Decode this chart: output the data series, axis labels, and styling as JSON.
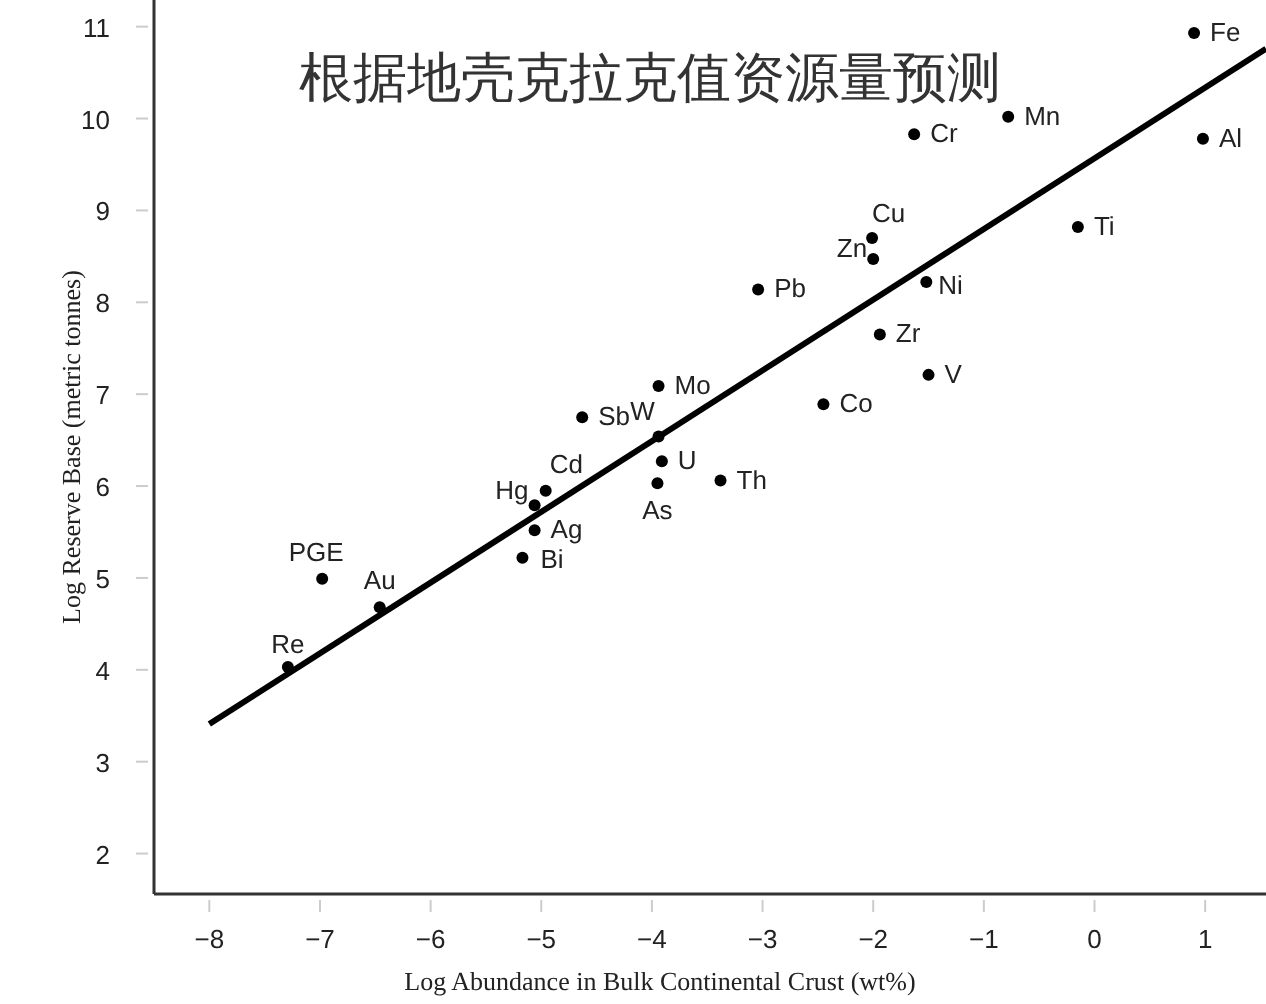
{
  "chart_data": {
    "type": "scatter",
    "title": "根据地壳克拉克值资源量预测",
    "xlabel": "Log Abundance in Bulk Continental Crust (wt%)",
    "ylabel": "Log Reserve Base (metric tonnes)",
    "xlim": [
      -8.5,
      1.55
    ],
    "ylim": [
      1.56,
      11.29
    ],
    "xticks": [
      -8,
      -7,
      -6,
      -5,
      -4,
      -3,
      -2,
      -1,
      0,
      1
    ],
    "yticks": [
      2,
      3,
      4,
      5,
      6,
      7,
      8,
      9,
      10,
      11
    ],
    "grid": false,
    "marker": "circle",
    "series": [
      {
        "name": "Fe",
        "color": "#000000",
        "x": [
          0.9
        ],
        "values": [
          10.93
        ]
      },
      {
        "name": "Mn",
        "color": "#000000",
        "x": [
          -0.78
        ],
        "values": [
          10.02
        ]
      },
      {
        "name": "Cr",
        "color": "#000000",
        "x": [
          -1.63
        ],
        "values": [
          9.83
        ]
      },
      {
        "name": "Al",
        "color": "#000000",
        "x": [
          0.98
        ],
        "values": [
          9.78
        ]
      },
      {
        "name": "Ti",
        "color": "#000000",
        "x": [
          -0.15
        ],
        "values": [
          8.82
        ]
      },
      {
        "name": "Cu",
        "color": "#000000",
        "x": [
          -2.01
        ],
        "values": [
          8.7
        ]
      },
      {
        "name": "Zn",
        "color": "#000000",
        "x": [
          -2.0
        ],
        "values": [
          8.47
        ]
      },
      {
        "name": "Ni",
        "color": "#000000",
        "x": [
          -1.52
        ],
        "values": [
          8.22
        ]
      },
      {
        "name": "Pb",
        "color": "#000000",
        "x": [
          -3.04
        ],
        "values": [
          8.14
        ]
      },
      {
        "name": "Zr",
        "color": "#000000",
        "x": [
          -1.94
        ],
        "values": [
          7.65
        ]
      },
      {
        "name": "V",
        "color": "#000000",
        "x": [
          -1.5
        ],
        "values": [
          7.21
        ]
      },
      {
        "name": "Mo",
        "color": "#000000",
        "x": [
          -3.94
        ],
        "values": [
          7.09
        ]
      },
      {
        "name": "Co",
        "color": "#000000",
        "x": [
          -2.45
        ],
        "values": [
          6.89
        ]
      },
      {
        "name": "Sb",
        "color": "#000000",
        "x": [
          -4.63
        ],
        "values": [
          6.75
        ]
      },
      {
        "name": "W",
        "color": "#000000",
        "x": [
          -3.94
        ],
        "values": [
          6.54
        ]
      },
      {
        "name": "U",
        "color": "#000000",
        "x": [
          -3.91
        ],
        "values": [
          6.27
        ]
      },
      {
        "name": "Th",
        "color": "#000000",
        "x": [
          -3.38
        ],
        "values": [
          6.06
        ]
      },
      {
        "name": "As",
        "color": "#000000",
        "x": [
          -3.95
        ],
        "values": [
          6.03
        ]
      },
      {
        "name": "Cd",
        "color": "#000000",
        "x": [
          -4.96
        ],
        "values": [
          5.95
        ]
      },
      {
        "name": "Hg",
        "color": "#000000",
        "x": [
          -5.06
        ],
        "values": [
          5.79
        ]
      },
      {
        "name": "Ag",
        "color": "#000000",
        "x": [
          -5.06
        ],
        "values": [
          5.52
        ]
      },
      {
        "name": "Bi",
        "color": "#000000",
        "x": [
          -5.17
        ],
        "values": [
          5.22
        ]
      },
      {
        "name": "PGE",
        "color": "#000000",
        "x": [
          -6.98
        ],
        "values": [
          4.99
        ]
      },
      {
        "name": "Au",
        "color": "#000000",
        "x": [
          -6.46
        ],
        "values": [
          4.68
        ]
      },
      {
        "name": "Re",
        "color": "#000000",
        "x": [
          -7.29
        ],
        "values": [
          4.03
        ]
      },
      {
        "type": "line",
        "color": "#000000",
        "x": [
          -8,
          1.55
        ],
        "values": [
          3.41,
          10.76
        ],
        "line_style": "solid",
        "marker": "none"
      }
    ]
  }
}
